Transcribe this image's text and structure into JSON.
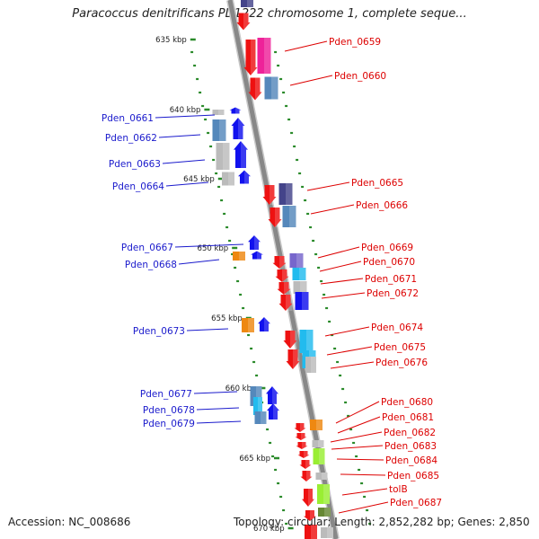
{
  "title": "Paracoccus denitrificans PD1222 chromosome 1, complete seque...",
  "accession": "Accession: NC_008686",
  "topology": "Topology: circular; Length: 2,852,282 bp; Genes: 2,850",
  "scale_labels": [
    {
      "text": "635 kbp"
    },
    {
      "text": "640 kbp"
    },
    {
      "text": "645 kbp"
    },
    {
      "text": "650 kbp"
    },
    {
      "text": "655 kbp"
    },
    {
      "text": "660 kbp"
    },
    {
      "text": "665 kbp"
    },
    {
      "text": "670 kbp"
    }
  ],
  "colors": {
    "red": "#ee1111",
    "blue": "#1111ee",
    "gene_label_left": "#1a1acc",
    "gene_label_right": "#dd0000",
    "backbone": "#888888",
    "tick": "#2a8a2a",
    "pink": "#ee2299",
    "steel": "#5588bb",
    "slate": "#44448a",
    "orange": "#ee8811",
    "purple": "#7766cc",
    "cyan": "#22bbee",
    "light_gray": "#bbbbbb",
    "olive": "#88aa22",
    "lime": "#99ee33",
    "khaki": "#668833"
  },
  "genes_left": [
    {
      "id": "Pden_0661"
    },
    {
      "id": "Pden_0662"
    },
    {
      "id": "Pden_0663"
    },
    {
      "id": "Pden_0664"
    },
    {
      "id": "Pden_0667"
    },
    {
      "id": "Pden_0668"
    },
    {
      "id": "Pden_0673"
    },
    {
      "id": "Pden_0677"
    },
    {
      "id": "Pden_0678"
    },
    {
      "id": "Pden_0679"
    }
  ],
  "genes_right": [
    {
      "id": "Pden_0659"
    },
    {
      "id": "Pden_0660"
    },
    {
      "id": "Pden_0665"
    },
    {
      "id": "Pden_0666"
    },
    {
      "id": "Pden_0669"
    },
    {
      "id": "Pden_0670"
    },
    {
      "id": "Pden_0671"
    },
    {
      "id": "Pden_0672"
    },
    {
      "id": "Pden_0674"
    },
    {
      "id": "Pden_0675"
    },
    {
      "id": "Pden_0676"
    },
    {
      "id": "Pden_0680"
    },
    {
      "id": "Pden_0681"
    },
    {
      "id": "Pden_0682"
    },
    {
      "id": "Pden_0683"
    },
    {
      "id": "Pden_0684"
    },
    {
      "id": "Pden_0685"
    },
    {
      "id": "tolB"
    },
    {
      "id": "Pden_0687"
    }
  ]
}
